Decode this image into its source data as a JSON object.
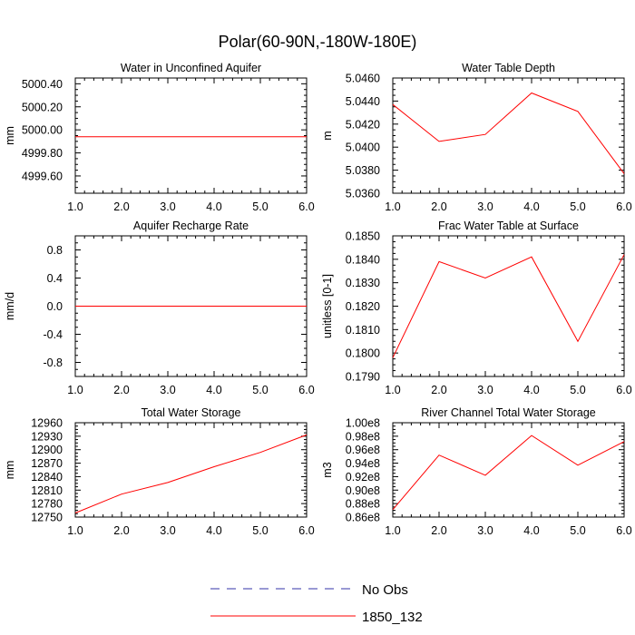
{
  "figure_title": "Polar(60-90N,-180W-180E)",
  "legend": {
    "entries": [
      {
        "label": "No Obs",
        "color": "#3333aa",
        "style": "dashed"
      },
      {
        "label": "1850_132",
        "color": "#ff0000",
        "style": "solid"
      }
    ]
  },
  "chart_data": [
    {
      "type": "line",
      "title": "Water in Unconfined Aquifer",
      "ylabel": "mm",
      "x": [
        1,
        2,
        3,
        4,
        5,
        6
      ],
      "xlim": [
        1,
        6
      ],
      "xticks": [
        "1.0",
        "2.0",
        "3.0",
        "4.0",
        "5.0",
        "6.0"
      ],
      "ylim": [
        4999.45,
        5000.45
      ],
      "yticks": [
        4999.6,
        4999.8,
        5000.0,
        5000.2,
        5000.4
      ],
      "ytick_labels": [
        "4999.60",
        "4999.80",
        "5000.00",
        "5000.20",
        "5000.40"
      ],
      "series": [
        {
          "name": "1850_132",
          "color": "#ff0000",
          "values": [
            4999.94,
            4999.94,
            4999.94,
            4999.94,
            4999.94,
            4999.94
          ]
        }
      ]
    },
    {
      "type": "line",
      "title": "Water Table Depth",
      "ylabel": "m",
      "x": [
        1,
        2,
        3,
        4,
        5,
        6
      ],
      "xlim": [
        1,
        6
      ],
      "xticks": [
        "1.0",
        "2.0",
        "3.0",
        "4.0",
        "5.0",
        "6.0"
      ],
      "ylim": [
        5.036,
        5.046
      ],
      "yticks": [
        5.036,
        5.038,
        5.04,
        5.042,
        5.044,
        5.046
      ],
      "ytick_labels": [
        "5.0360",
        "5.0380",
        "5.0400",
        "5.0420",
        "5.0440",
        "5.0460"
      ],
      "series": [
        {
          "name": "1850_132",
          "color": "#ff0000",
          "values": [
            5.0437,
            5.0405,
            5.0411,
            5.0447,
            5.0431,
            5.0377
          ]
        }
      ]
    },
    {
      "type": "line",
      "title": "Aquifer Recharge Rate",
      "ylabel": "mm/d",
      "x": [
        1,
        2,
        3,
        4,
        5,
        6
      ],
      "xlim": [
        1,
        6
      ],
      "xticks": [
        "1.0",
        "2.0",
        "3.0",
        "4.0",
        "5.0",
        "6.0"
      ],
      "ylim": [
        -1.0,
        1.0
      ],
      "yticks": [
        -0.8,
        -0.4,
        0.0,
        0.4,
        0.8
      ],
      "ytick_labels": [
        "-0.8",
        "-0.4",
        "0.0",
        "0.4",
        "0.8"
      ],
      "series": [
        {
          "name": "1850_132",
          "color": "#ff0000",
          "values": [
            0,
            0,
            0,
            0,
            0,
            0
          ]
        }
      ]
    },
    {
      "type": "line",
      "title": "Frac Water Table at Surface",
      "ylabel": "unitless [0-1]",
      "x": [
        1,
        2,
        3,
        4,
        5,
        6
      ],
      "xlim": [
        1,
        6
      ],
      "xticks": [
        "1.0",
        "2.0",
        "3.0",
        "4.0",
        "5.0",
        "6.0"
      ],
      "ylim": [
        0.179,
        0.185
      ],
      "yticks": [
        0.179,
        0.18,
        0.181,
        0.182,
        0.183,
        0.184,
        0.185
      ],
      "ytick_labels": [
        "0.1790",
        "0.1800",
        "0.1810",
        "0.1820",
        "0.1830",
        "0.1840",
        "0.1850"
      ],
      "series": [
        {
          "name": "1850_132",
          "color": "#ff0000",
          "values": [
            0.1798,
            0.1839,
            0.1832,
            0.1841,
            0.1805,
            0.1842
          ]
        }
      ]
    },
    {
      "type": "line",
      "title": "Total Water Storage",
      "ylabel": "mm",
      "x": [
        1,
        2,
        3,
        4,
        5,
        6
      ],
      "xlim": [
        1,
        6
      ],
      "xticks": [
        "1.0",
        "2.0",
        "3.0",
        "4.0",
        "5.0",
        "6.0"
      ],
      "ylim": [
        12750,
        12960
      ],
      "yticks": [
        12750,
        12780,
        12810,
        12840,
        12870,
        12900,
        12930,
        12960
      ],
      "ytick_labels": [
        "12750",
        "12780",
        "12810",
        "12840",
        "12870",
        "12900",
        "12930",
        "12960"
      ],
      "series": [
        {
          "name": "1850_132",
          "color": "#ff0000",
          "values": [
            12759,
            12801,
            12827,
            12862,
            12894,
            12933
          ]
        }
      ]
    },
    {
      "type": "line",
      "title": "River Channel Total Water Storage",
      "ylabel": "m3",
      "x": [
        1,
        2,
        3,
        4,
        5,
        6
      ],
      "xlim": [
        1,
        6
      ],
      "xticks": [
        "1.0",
        "2.0",
        "3.0",
        "4.0",
        "5.0",
        "6.0"
      ],
      "ylim": [
        86000000,
        100000000
      ],
      "yticks": [
        86000000,
        88000000,
        90000000,
        92000000,
        94000000,
        96000000,
        98000000,
        100000000
      ],
      "ytick_labels": [
        "0.86e8",
        "0.88e8",
        "0.90e8",
        "0.92e8",
        "0.94e8",
        "0.96e8",
        "0.98e8",
        "1.00e8"
      ],
      "series": [
        {
          "name": "1850_132",
          "color": "#ff0000",
          "values": [
            87100000,
            95200000,
            92200000,
            98100000,
            93700000,
            97200000
          ]
        }
      ]
    }
  ]
}
